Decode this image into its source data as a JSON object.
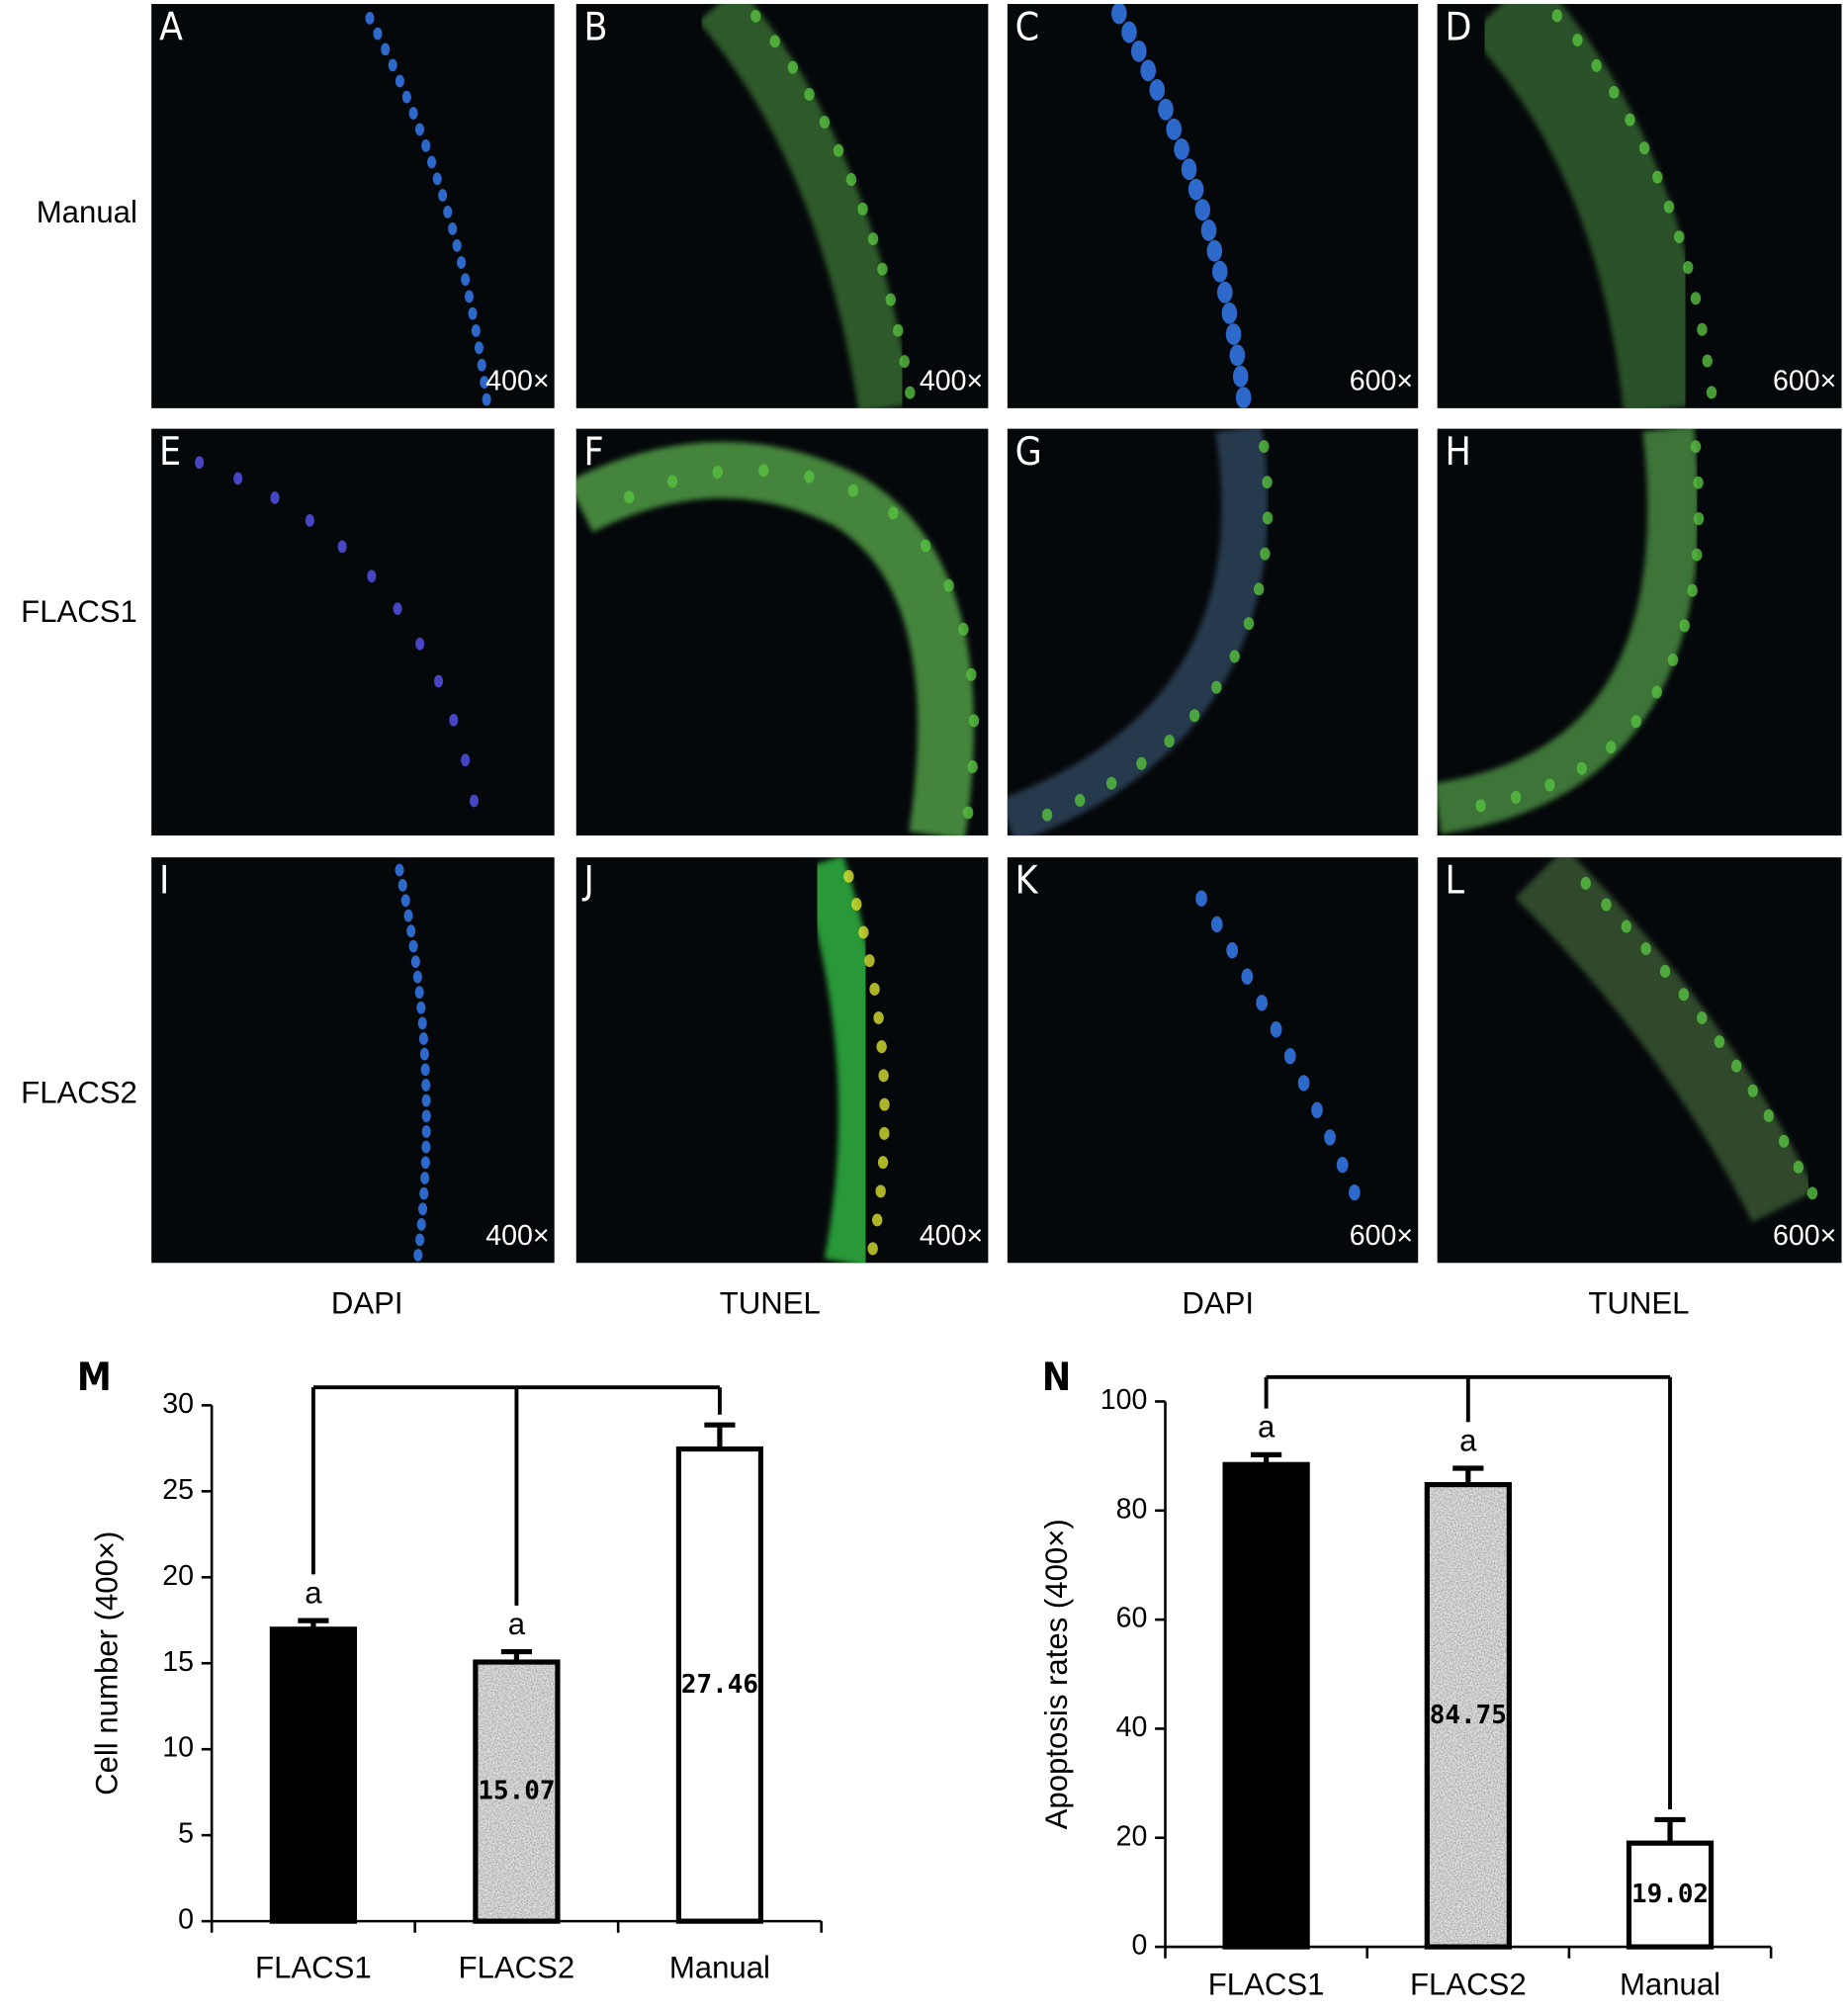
{
  "panels": {
    "rows": [
      "Manual",
      "FLACS1",
      "FLACS2"
    ],
    "columns": [
      "DAPI",
      "TUNEL",
      "DAPI",
      "TUNEL"
    ],
    "images": [
      {
        "letter": "A",
        "magnification": "400×"
      },
      {
        "letter": "B",
        "magnification": "400×"
      },
      {
        "letter": "C",
        "magnification": "600×"
      },
      {
        "letter": "D",
        "magnification": "600×"
      },
      {
        "letter": "E"
      },
      {
        "letter": "F"
      },
      {
        "letter": "G"
      },
      {
        "letter": "H"
      },
      {
        "letter": "I",
        "magnification": "400×"
      },
      {
        "letter": "J",
        "magnification": "400×"
      },
      {
        "letter": "K",
        "magnification": "600×"
      },
      {
        "letter": "L",
        "magnification": "600×"
      }
    ]
  },
  "chart_data": [
    {
      "type": "bar",
      "panel_label": "M",
      "y_label": "Cell number (400×)",
      "categories": [
        "FLACS1",
        "FLACS2",
        "Manual"
      ],
      "values": [
        16.98,
        15.07,
        27.46
      ],
      "errors": [
        0.5,
        0.6,
        1.4
      ],
      "significance_labels": [
        "a",
        "a",
        null
      ],
      "colors": [
        "#000000",
        "#a0a0a0",
        "#ffffff"
      ],
      "hatch": [
        false,
        true,
        false
      ],
      "ylim": [
        0,
        30
      ],
      "yticks": [
        0,
        5,
        10,
        15,
        20,
        25,
        30
      ]
    },
    {
      "type": "bar",
      "panel_label": "N",
      "y_label": "Apoptosis rates (400×)",
      "categories": [
        "FLACS1",
        "FLACS2",
        "Manual"
      ],
      "values": [
        88.43,
        84.75,
        19.02
      ],
      "errors": [
        1.8,
        3.0,
        4.3
      ],
      "significance_labels": [
        "a",
        "a",
        null
      ],
      "colors": [
        "#000000",
        "#a0a0a0",
        "#ffffff"
      ],
      "hatch": [
        false,
        true,
        false
      ],
      "ylim": [
        0,
        100
      ],
      "yticks": [
        0,
        20,
        40,
        60,
        80,
        100
      ]
    }
  ]
}
